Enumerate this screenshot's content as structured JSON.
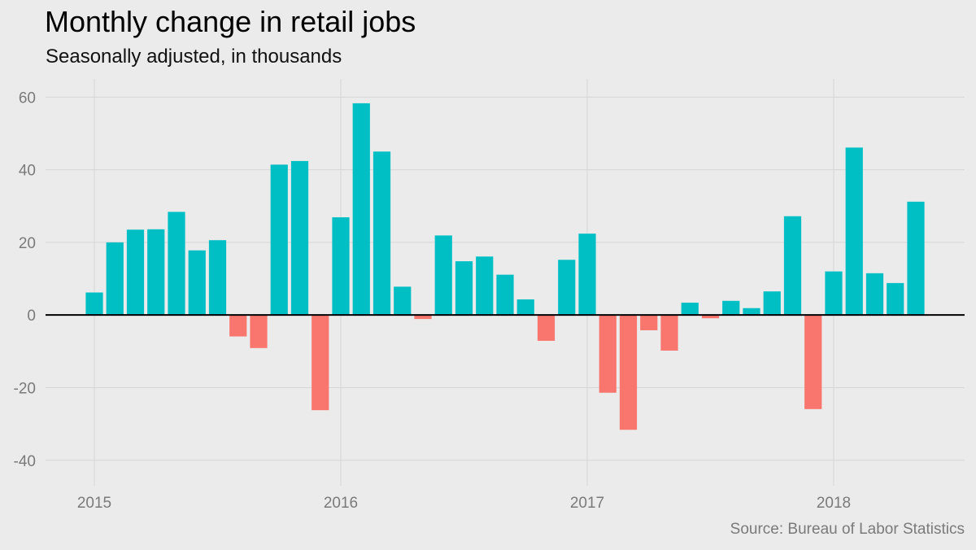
{
  "chart_data": {
    "type": "bar",
    "title": "Monthly change in retail jobs",
    "subtitle": "Seasonally adjusted, in thousands",
    "source": "Source: Bureau of Labor Statistics",
    "xlabel": "",
    "ylabel": "",
    "ylim": [
      -47,
      65
    ],
    "y_ticks": [
      -40,
      -20,
      0,
      20,
      40,
      60
    ],
    "y_tick_labels": [
      "-40",
      "-20",
      "0",
      "20",
      "40",
      "60"
    ],
    "x_ticks": [
      "2015",
      "2016",
      "2017",
      "2018"
    ],
    "grid": true,
    "positive_color": "#00bfc4",
    "negative_color": "#f8766d",
    "categories": [
      "2015-01",
      "2015-02",
      "2015-03",
      "2015-04",
      "2015-05",
      "2015-06",
      "2015-07",
      "2015-08",
      "2015-09",
      "2015-10",
      "2015-11",
      "2015-12",
      "2016-01",
      "2016-02",
      "2016-03",
      "2016-04",
      "2016-05",
      "2016-06",
      "2016-07",
      "2016-08",
      "2016-09",
      "2016-10",
      "2016-11",
      "2016-12",
      "2017-01",
      "2017-02",
      "2017-03",
      "2017-04",
      "2017-05",
      "2017-06",
      "2017-07",
      "2017-08",
      "2017-09",
      "2017-10",
      "2017-11",
      "2017-12",
      "2018-01",
      "2018-02",
      "2018-03",
      "2018-04",
      "2018-05"
    ],
    "values": [
      6.2,
      20.0,
      23.5,
      23.6,
      28.4,
      17.8,
      20.6,
      -5.9,
      -9.1,
      41.4,
      42.4,
      -26.2,
      26.9,
      58.3,
      45.0,
      7.8,
      -1.1,
      21.9,
      14.8,
      16.1,
      11.1,
      4.3,
      -7.1,
      15.2,
      22.4,
      -21.4,
      -31.6,
      -4.2,
      -9.8,
      3.4,
      -0.9,
      3.9,
      1.9,
      6.5,
      27.2,
      -25.9,
      12.0,
      46.1,
      11.5,
      8.8,
      31.2
    ]
  }
}
